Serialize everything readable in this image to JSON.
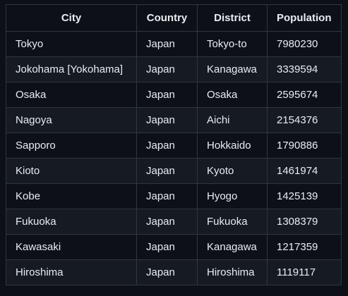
{
  "table": {
    "headers": [
      "City",
      "Country",
      "District",
      "Population"
    ],
    "rows": [
      [
        "Tokyo",
        "Japan",
        "Tokyo-to",
        "7980230"
      ],
      [
        "Jokohama [Yokohama]",
        "Japan",
        "Kanagawa",
        "3339594"
      ],
      [
        "Osaka",
        "Japan",
        "Osaka",
        "2595674"
      ],
      [
        "Nagoya",
        "Japan",
        "Aichi",
        "2154376"
      ],
      [
        "Sapporo",
        "Japan",
        "Hokkaido",
        "1790886"
      ],
      [
        "Kioto",
        "Japan",
        "Kyoto",
        "1461974"
      ],
      [
        "Kobe",
        "Japan",
        "Hyogo",
        "1425139"
      ],
      [
        "Fukuoka",
        "Japan",
        "Fukuoka",
        "1308379"
      ],
      [
        "Kawasaki",
        "Japan",
        "Kanagawa",
        "1217359"
      ],
      [
        "Hiroshima",
        "Japan",
        "Hiroshima",
        "1119117"
      ]
    ]
  },
  "colors": {
    "background": "#0d1117",
    "row_alt": "#161b22",
    "border": "#30363d",
    "text": "#e6edf3"
  }
}
